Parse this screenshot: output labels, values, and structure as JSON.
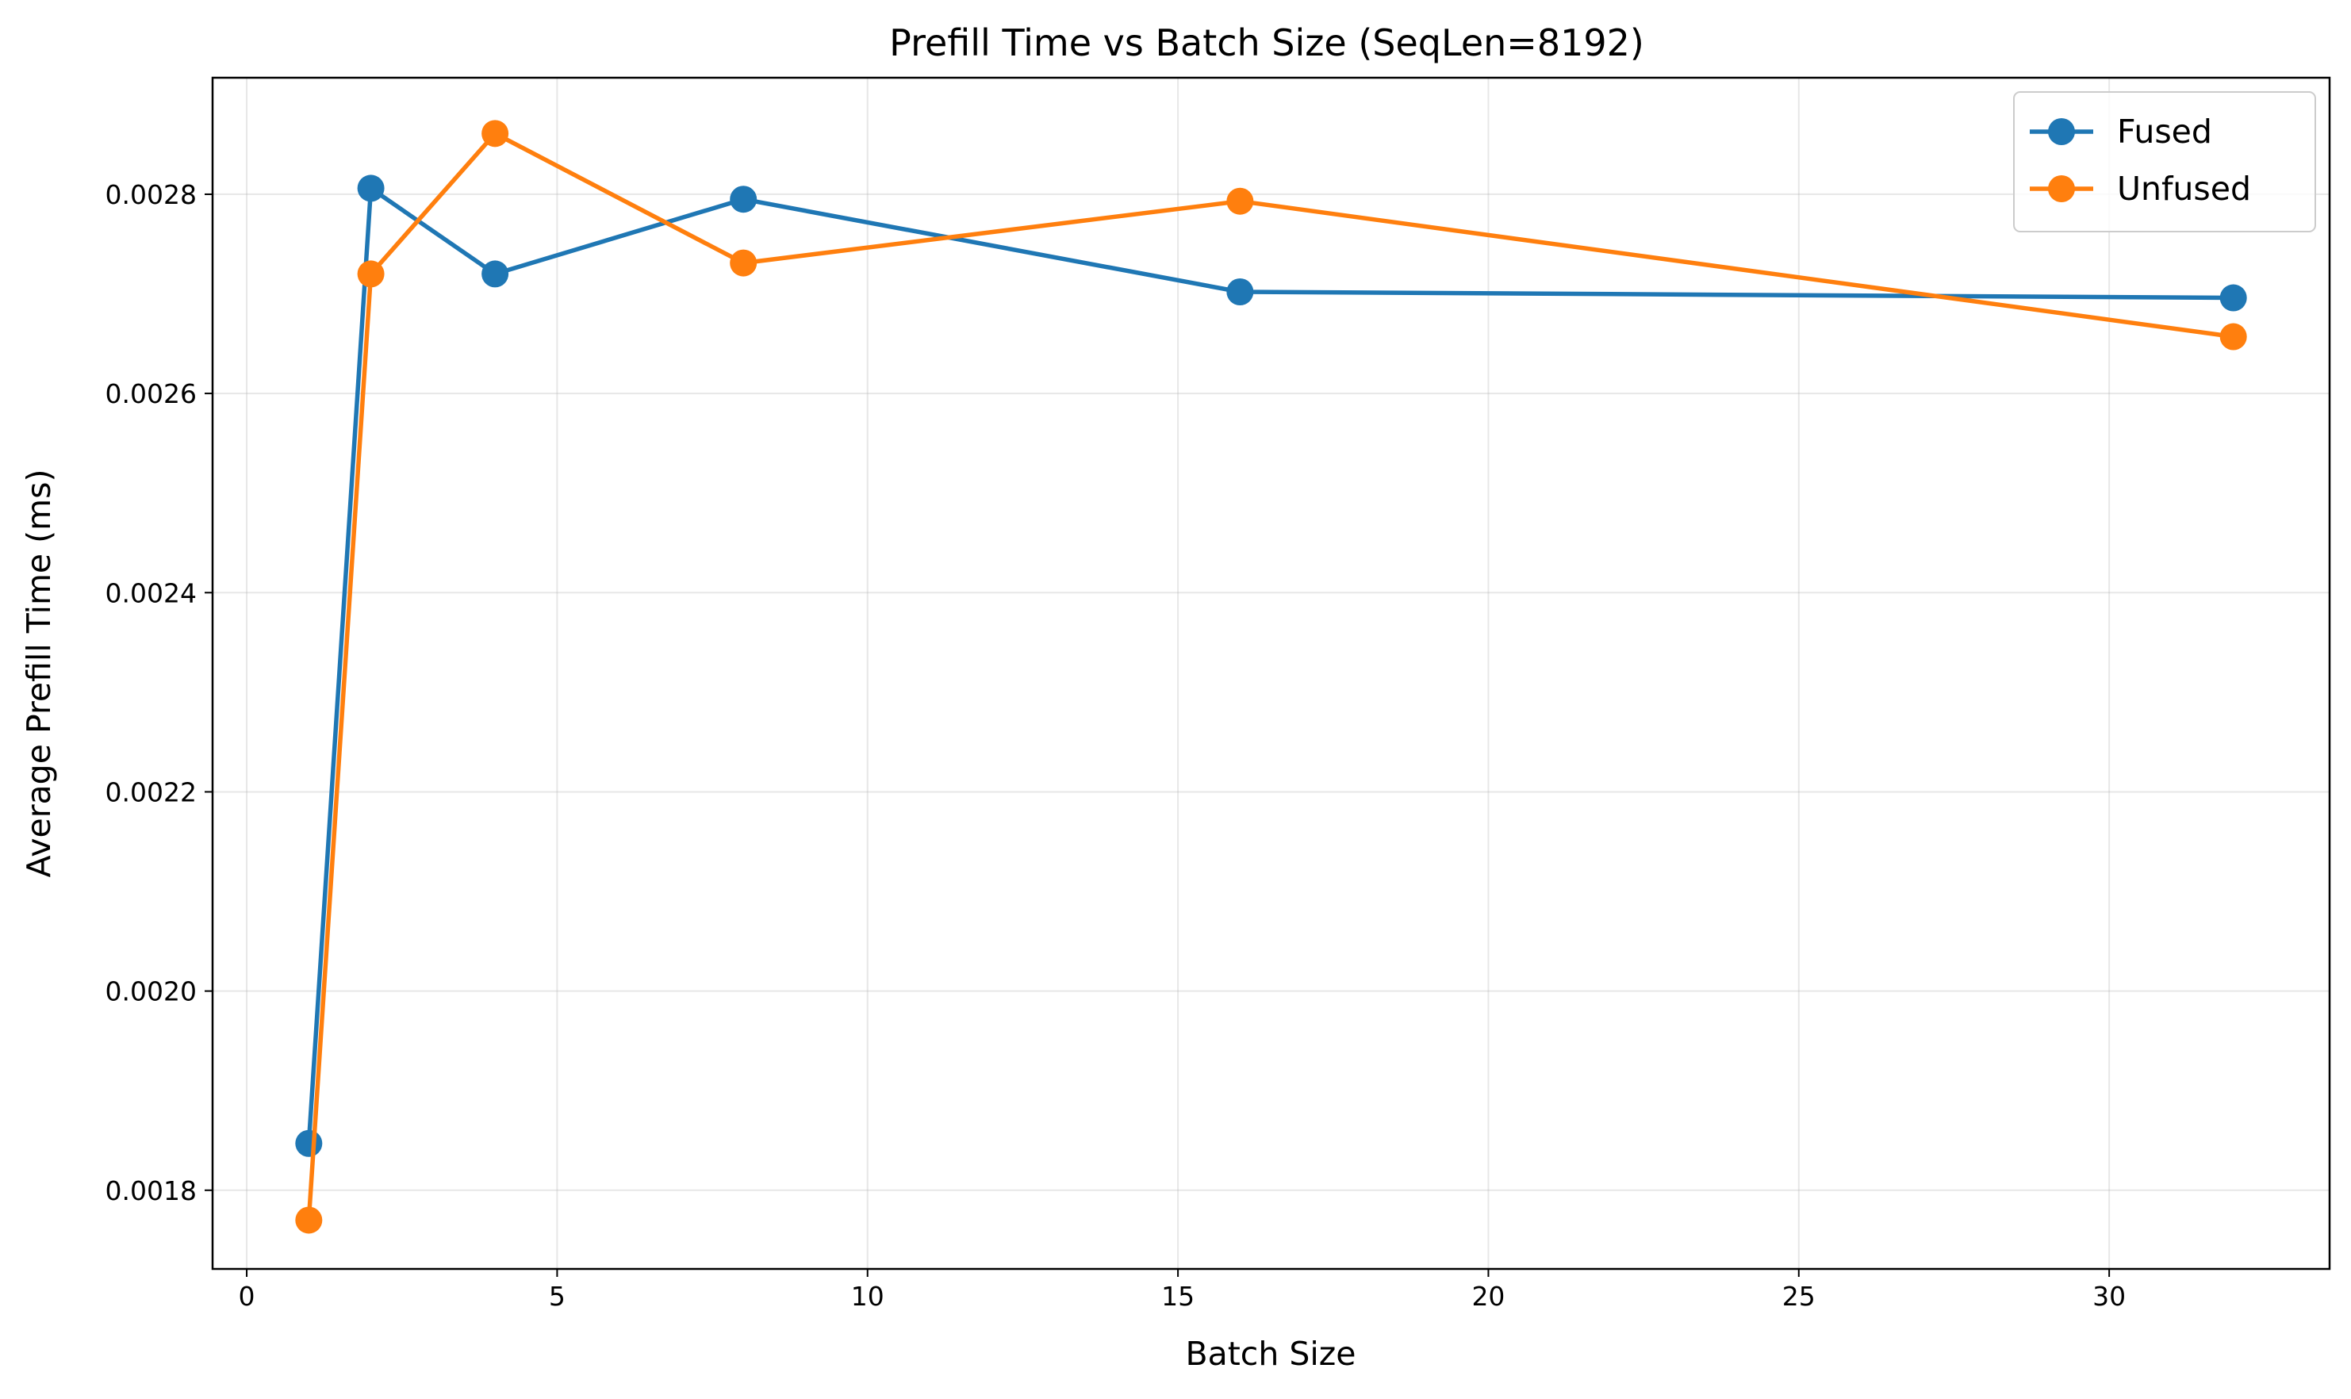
{
  "chart_data": {
    "type": "line",
    "title": "Prefill Time vs Batch Size (SeqLen=8192)",
    "xlabel": "Batch Size",
    "ylabel": "Average Prefill Time (ms)",
    "xlim": [
      -0.55,
      33.55
    ],
    "ylim": [
      0.001721,
      0.002917
    ],
    "xticks": [
      0,
      5,
      10,
      15,
      20,
      25,
      30
    ],
    "xtick_labels": [
      "0",
      "5",
      "10",
      "15",
      "20",
      "25",
      "30"
    ],
    "yticks": [
      0.0018,
      0.002,
      0.0022,
      0.0024,
      0.0026,
      0.0028
    ],
    "ytick_labels": [
      "0.0018",
      "0.0020",
      "0.0022",
      "0.0024",
      "0.0026",
      "0.0028"
    ],
    "grid": true,
    "legend_position": "top-right",
    "series": [
      {
        "name": "Fused",
        "color": "#1f77b4",
        "marker": "circle",
        "x": [
          1,
          2,
          4,
          8,
          16,
          32
        ],
        "y": [
          0.001847,
          0.002806,
          0.00272,
          0.002795,
          0.002702,
          0.002696
        ]
      },
      {
        "name": "Unfused",
        "color": "#ff7f0e",
        "marker": "circle",
        "x": [
          1,
          2,
          4,
          8,
          16,
          32
        ],
        "y": [
          0.00177,
          0.00272,
          0.002861,
          0.002731,
          0.002793,
          0.002657
        ]
      }
    ]
  }
}
